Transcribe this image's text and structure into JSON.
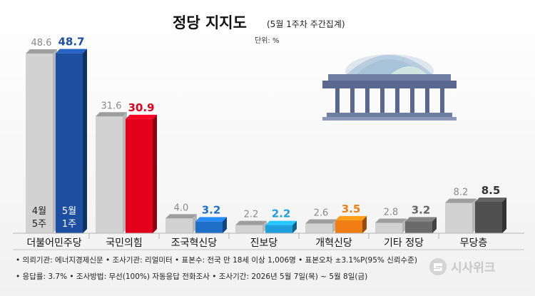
{
  "header": {
    "title": "정당 지지도",
    "subtitle": "(5월 1주차 주간집계)",
    "unit": "단위: %"
  },
  "chart_data": {
    "type": "bar",
    "title": "정당 지지도",
    "categories": [
      "더불어민주당",
      "국민의힘",
      "조국혁신당",
      "진보당",
      "개혁신당",
      "기타 정당",
      "무당층"
    ],
    "series": [
      {
        "name": "4월 5주",
        "values": [
          48.6,
          31.6,
          4.0,
          2.2,
          2.6,
          2.8,
          8.2
        ]
      },
      {
        "name": "5월 1주",
        "values": [
          48.7,
          30.9,
          3.2,
          2.2,
          3.5,
          3.2,
          8.5
        ]
      }
    ],
    "value_labels": {
      "prev": [
        "48.6",
        "31.6",
        "4.0",
        "2.2",
        "2.6",
        "2.8",
        "8.2"
      ],
      "cur": [
        "48.7",
        "30.9",
        "3.2",
        "2.2",
        "3.5",
        "3.2",
        "8.5"
      ]
    },
    "colors": {
      "prev_front": "#d2d2d2",
      "prev_side": "#b6b6b6",
      "prev_top": "#9e9e9e",
      "cur": [
        "#1d4fa0",
        "#e3001b",
        "#1f6fc9",
        "#1fa0dc",
        "#f07e14",
        "#6a6a6a",
        "#505050"
      ],
      "cur_text": [
        "#1d4fa0",
        "#e3001b",
        "#1f6fc9",
        "#1fa0dc",
        "#f07e14",
        "#666666",
        "#333333"
      ]
    },
    "period_labels": {
      "prev": [
        "4월",
        "5주"
      ],
      "cur": [
        "5월",
        "1주"
      ]
    },
    "ylim": [
      0,
      55
    ],
    "grid": false,
    "legend": "inside-first-bars"
  },
  "footer": {
    "line1": "• 의뢰기관: 에너지경제신문  • 조사기관: 리얼미터  • 표본수: 전국 만 18세 이상 1,006명  • 표본오차 ±3.1%P(95% 신뢰수준)",
    "line2": "• 응답률: 3.7%  • 조사방법: 무선(100%) 자동응답 전화조사  • 조사기간: 2026년 5월 7일(목) ~ 5월 8일(금)",
    "logo": "시사위크"
  }
}
